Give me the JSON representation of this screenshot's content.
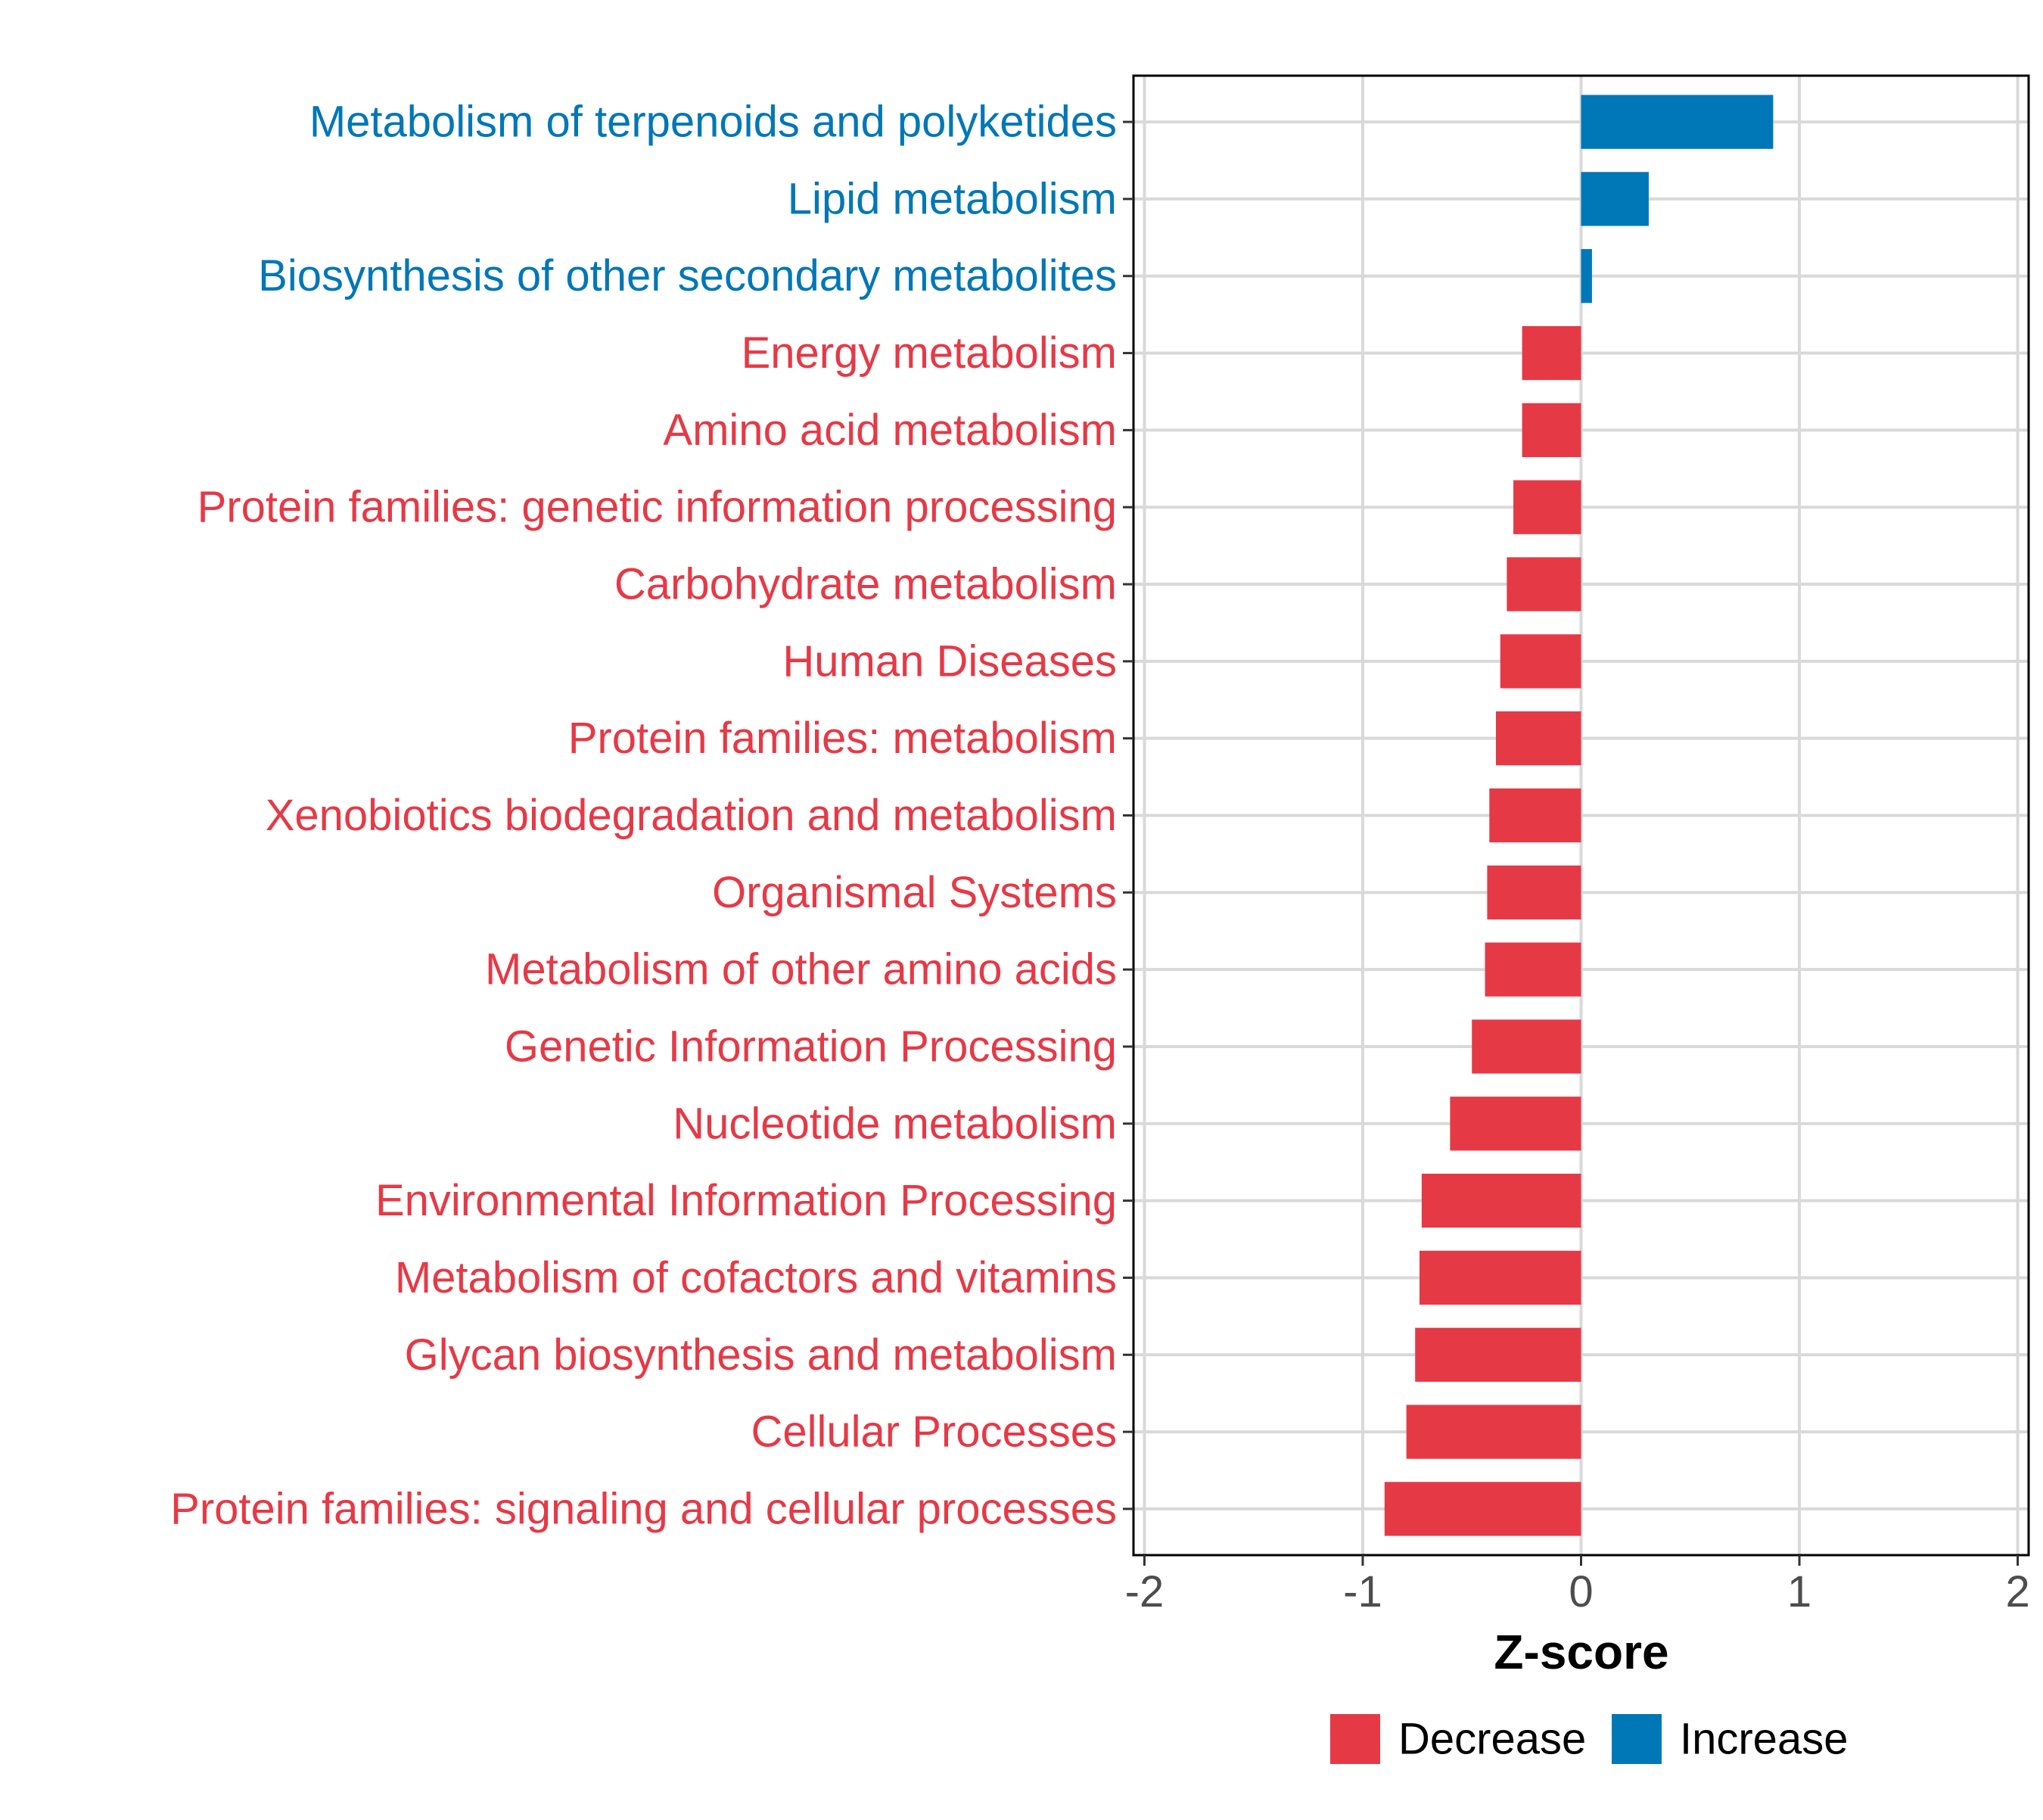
{
  "chart_data": {
    "type": "bar",
    "orientation": "horizontal",
    "title": "",
    "xlabel": "Z-score",
    "ylabel": "",
    "xlim": [
      -2.05,
      2.05
    ],
    "x_ticks": [
      -2,
      -1,
      0,
      1,
      2
    ],
    "x_tick_labels": [
      "-2",
      "-1",
      "0",
      "1",
      "2"
    ],
    "grid": true,
    "legend_position": "bottom",
    "colors": {
      "Decrease": "#E63946",
      "Increase": "#0077B6",
      "grid": "#d9d9d9",
      "axis": "#000000",
      "tick_text": "#4d4d4d"
    },
    "legend": [
      {
        "label": "Decrease",
        "color": "#E63946"
      },
      {
        "label": "Increase",
        "color": "#0077B6"
      }
    ],
    "categories": [
      "Metabolism of terpenoids and polyketides",
      "Lipid metabolism",
      "Biosynthesis of other secondary metabolites",
      "Energy metabolism",
      "Amino acid metabolism",
      "Protein families: genetic information processing",
      "Carbohydrate metabolism",
      "Human Diseases",
      "Protein families: metabolism",
      "Xenobiotics biodegradation and metabolism",
      "Organismal Systems",
      "Metabolism of other amino acids",
      "Genetic Information Processing",
      "Nucleotide metabolism",
      "Environmental Information Processing",
      "Metabolism of cofactors and vitamins",
      "Glycan biosynthesis and metabolism",
      "Cellular Processes",
      "Protein families: signaling and cellular processes"
    ],
    "values": [
      0.88,
      0.31,
      0.05,
      -0.27,
      -0.27,
      -0.31,
      -0.34,
      -0.37,
      -0.39,
      -0.42,
      -0.43,
      -0.44,
      -0.5,
      -0.6,
      -0.73,
      -0.74,
      -0.76,
      -0.8,
      -0.9
    ],
    "groups": [
      "Increase",
      "Increase",
      "Increase",
      "Decrease",
      "Decrease",
      "Decrease",
      "Decrease",
      "Decrease",
      "Decrease",
      "Decrease",
      "Decrease",
      "Decrease",
      "Decrease",
      "Decrease",
      "Decrease",
      "Decrease",
      "Decrease",
      "Decrease",
      "Decrease"
    ]
  }
}
